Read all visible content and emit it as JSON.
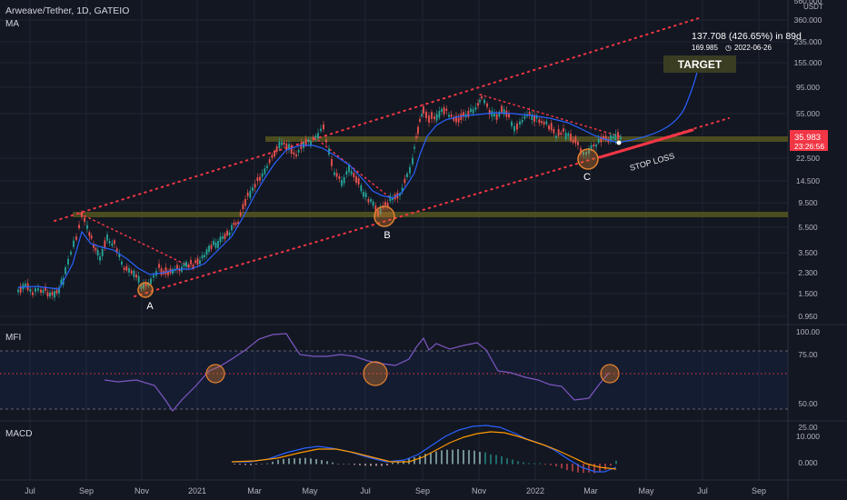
{
  "header": {
    "title": "Arweave/Tether, 1D, GATEIO",
    "indicator": "MA"
  },
  "colors": {
    "background": "#131722",
    "candle_up": "#26a69a",
    "candle_down": "#ef5350",
    "ma_line": "#2962ff",
    "channel": "#f23645",
    "zone": "#8a8a2a",
    "circle": "#e3822f",
    "orange": "#ff9800",
    "label_bg": "#f23645"
  },
  "chart_data": [
    {
      "type": "line",
      "name": "price",
      "axis_unit": "USDT",
      "yscale": "log",
      "x_ticks": [
        "Jul",
        "Sep",
        "Nov",
        "2021",
        "Mar",
        "May",
        "Jul",
        "Sep",
        "Nov",
        "2022",
        "Mar",
        "May",
        "Jul",
        "Sep"
      ],
      "y_ticks": [
        "560.000",
        "360.000",
        "235.000",
        "155.000",
        "95.000",
        "55.000",
        "35.983",
        "22.500",
        "14.500",
        "9.500",
        "5.500",
        "3.500",
        "2.300",
        "1.500",
        "0.950"
      ],
      "last_price": "35.983",
      "countdown": "23:26:56",
      "annotations": {
        "points": [
          "A",
          "B",
          "C"
        ],
        "target": "TARGET",
        "stop_loss": "STOP LOSS",
        "projection_line1": "137.708 (426.65%) in 89d",
        "projection_line2": "169.985",
        "projection_date": "2022-06-26"
      },
      "ma_path": [
        [
          20,
          316
        ],
        [
          40,
          315
        ],
        [
          65,
          318
        ],
        [
          80,
          290
        ],
        [
          90,
          255
        ],
        [
          100,
          268
        ],
        [
          112,
          272
        ],
        [
          125,
          275
        ],
        [
          140,
          285
        ],
        [
          152,
          295
        ],
        [
          165,
          302
        ],
        [
          180,
          300
        ],
        [
          195,
          296
        ],
        [
          210,
          296
        ],
        [
          225,
          290
        ],
        [
          240,
          275
        ],
        [
          255,
          260
        ],
        [
          268,
          238
        ],
        [
          280,
          215
        ],
        [
          290,
          198
        ],
        [
          302,
          180
        ],
        [
          315,
          165
        ],
        [
          330,
          160
        ],
        [
          345,
          160
        ],
        [
          355,
          163
        ],
        [
          370,
          172
        ],
        [
          385,
          182
        ],
        [
          400,
          198
        ],
        [
          410,
          210
        ],
        [
          420,
          215
        ],
        [
          432,
          218
        ],
        [
          442,
          212
        ],
        [
          450,
          200
        ],
        [
          456,
          190
        ],
        [
          462,
          170
        ],
        [
          470,
          150
        ],
        [
          480,
          138
        ],
        [
          490,
          132
        ],
        [
          505,
          128
        ],
        [
          525,
          126
        ],
        [
          545,
          124
        ],
        [
          565,
          125
        ],
        [
          585,
          127
        ],
        [
          605,
          130
        ],
        [
          625,
          135
        ],
        [
          640,
          142
        ],
        [
          652,
          148
        ],
        [
          665,
          153
        ],
        [
          680,
          157
        ]
      ],
      "candle_path": [
        [
          20,
          320
        ],
        [
          28,
          315
        ],
        [
          36,
          322
        ],
        [
          45,
          318
        ],
        [
          55,
          322
        ],
        [
          65,
          320
        ],
        [
          72,
          300
        ],
        [
          78,
          280
        ],
        [
          84,
          262
        ],
        [
          90,
          238
        ],
        [
          96,
          250
        ],
        [
          103,
          270
        ],
        [
          110,
          282
        ],
        [
          118,
          262
        ],
        [
          126,
          268
        ],
        [
          134,
          290
        ],
        [
          142,
          300
        ],
        [
          150,
          305
        ],
        [
          158,
          317
        ],
        [
          166,
          308
        ],
        [
          175,
          295
        ],
        [
          185,
          300
        ],
        [
          195,
          296
        ],
        [
          205,
          292
        ],
        [
          215,
          290
        ],
        [
          225,
          282
        ],
        [
          235,
          270
        ],
        [
          245,
          262
        ],
        [
          255,
          252
        ],
        [
          262,
          242
        ],
        [
          270,
          220
        ],
        [
          278,
          210
        ],
        [
          286,
          195
        ],
        [
          294,
          182
        ],
        [
          302,
          170
        ],
        [
          310,
          158
        ],
        [
          318,
          162
        ],
        [
          326,
          168
        ],
        [
          334,
          160
        ],
        [
          342,
          155
        ],
        [
          350,
          150
        ],
        [
          356,
          140
        ],
        [
          362,
          165
        ],
        [
          368,
          190
        ],
        [
          376,
          200
        ],
        [
          384,
          188
        ],
        [
          392,
          195
        ],
        [
          400,
          215
        ],
        [
          408,
          222
        ],
        [
          416,
          232
        ],
        [
          424,
          225
        ],
        [
          432,
          218
        ],
        [
          440,
          212
        ],
        [
          448,
          195
        ],
        [
          454,
          175
        ],
        [
          458,
          150
        ],
        [
          462,
          135
        ],
        [
          466,
          120
        ],
        [
          472,
          128
        ],
        [
          478,
          132
        ],
        [
          486,
          120
        ],
        [
          494,
          125
        ],
        [
          502,
          130
        ],
        [
          510,
          128
        ],
        [
          518,
          122
        ],
        [
          526,
          115
        ],
        [
          530,
          105
        ],
        [
          536,
          118
        ],
        [
          544,
          128
        ],
        [
          552,
          122
        ],
        [
          560,
          130
        ],
        [
          566,
          140
        ],
        [
          572,
          135
        ],
        [
          580,
          125
        ],
        [
          588,
          130
        ],
        [
          596,
          132
        ],
        [
          604,
          138
        ],
        [
          612,
          150
        ],
        [
          620,
          145
        ],
        [
          628,
          150
        ],
        [
          636,
          160
        ],
        [
          642,
          170
        ],
        [
          648,
          165
        ],
        [
          656,
          158
        ],
        [
          664,
          152
        ],
        [
          672,
          154
        ],
        [
          680,
          150
        ],
        [
          686,
          155
        ]
      ]
    },
    {
      "type": "line",
      "name": "MFI",
      "yticks": [
        "100.00",
        "75.00",
        "50.00",
        "25.00"
      ],
      "path": [
        [
          115,
          418
        ],
        [
          130,
          420
        ],
        [
          150,
          418
        ],
        [
          170,
          424
        ],
        [
          182,
          440
        ],
        [
          190,
          452
        ],
        [
          200,
          440
        ],
        [
          215,
          425
        ],
        [
          230,
          408
        ],
        [
          242,
          403
        ],
        [
          255,
          395
        ],
        [
          270,
          385
        ],
        [
          285,
          373
        ],
        [
          300,
          368
        ],
        [
          315,
          367
        ],
        [
          322,
          378
        ],
        [
          330,
          390
        ],
        [
          345,
          392
        ],
        [
          360,
          392
        ],
        [
          375,
          390
        ],
        [
          390,
          392
        ],
        [
          405,
          397
        ],
        [
          420,
          400
        ],
        [
          435,
          402
        ],
        [
          450,
          395
        ],
        [
          458,
          382
        ],
        [
          466,
          372
        ],
        [
          472,
          385
        ],
        [
          480,
          378
        ],
        [
          495,
          384
        ],
        [
          510,
          380
        ],
        [
          525,
          377
        ],
        [
          535,
          385
        ],
        [
          548,
          408
        ],
        [
          562,
          410
        ],
        [
          578,
          415
        ],
        [
          592,
          418
        ],
        [
          605,
          423
        ],
        [
          618,
          425
        ],
        [
          632,
          440
        ],
        [
          648,
          438
        ],
        [
          660,
          422
        ],
        [
          670,
          410
        ]
      ]
    },
    {
      "type": "line",
      "name": "MACD",
      "yticks": [
        "10.000",
        "0.000"
      ],
      "macd_path": [
        [
          255,
          508
        ],
        [
          275,
          508
        ],
        [
          295,
          505
        ],
        [
          315,
          498
        ],
        [
          335,
          493
        ],
        [
          350,
          491
        ],
        [
          365,
          493
        ],
        [
          385,
          497
        ],
        [
          405,
          503
        ],
        [
          425,
          508
        ],
        [
          445,
          506
        ],
        [
          460,
          500
        ],
        [
          475,
          490
        ],
        [
          490,
          480
        ],
        [
          505,
          473
        ],
        [
          520,
          469
        ],
        [
          535,
          468
        ],
        [
          550,
          470
        ],
        [
          565,
          476
        ],
        [
          580,
          483
        ],
        [
          595,
          488
        ],
        [
          610,
          495
        ],
        [
          625,
          505
        ],
        [
          640,
          514
        ],
        [
          655,
          519
        ],
        [
          665,
          519
        ],
        [
          678,
          514
        ]
      ],
      "signal_path": [
        [
          255,
          508
        ],
        [
          280,
          507
        ],
        [
          305,
          504
        ],
        [
          330,
          498
        ],
        [
          350,
          494
        ],
        [
          370,
          494
        ],
        [
          390,
          498
        ],
        [
          410,
          503
        ],
        [
          430,
          508
        ],
        [
          450,
          508
        ],
        [
          465,
          503
        ],
        [
          480,
          495
        ],
        [
          495,
          487
        ],
        [
          510,
          481
        ],
        [
          525,
          477
        ],
        [
          540,
          475
        ],
        [
          555,
          476
        ],
        [
          570,
          480
        ],
        [
          585,
          485
        ],
        [
          600,
          490
        ],
        [
          615,
          496
        ],
        [
          630,
          503
        ],
        [
          645,
          510
        ],
        [
          660,
          514
        ],
        [
          678,
          516
        ]
      ],
      "histogram": {
        "x_start": 258,
        "x_end": 678,
        "step": 6,
        "zero_y": 510
      }
    }
  ]
}
